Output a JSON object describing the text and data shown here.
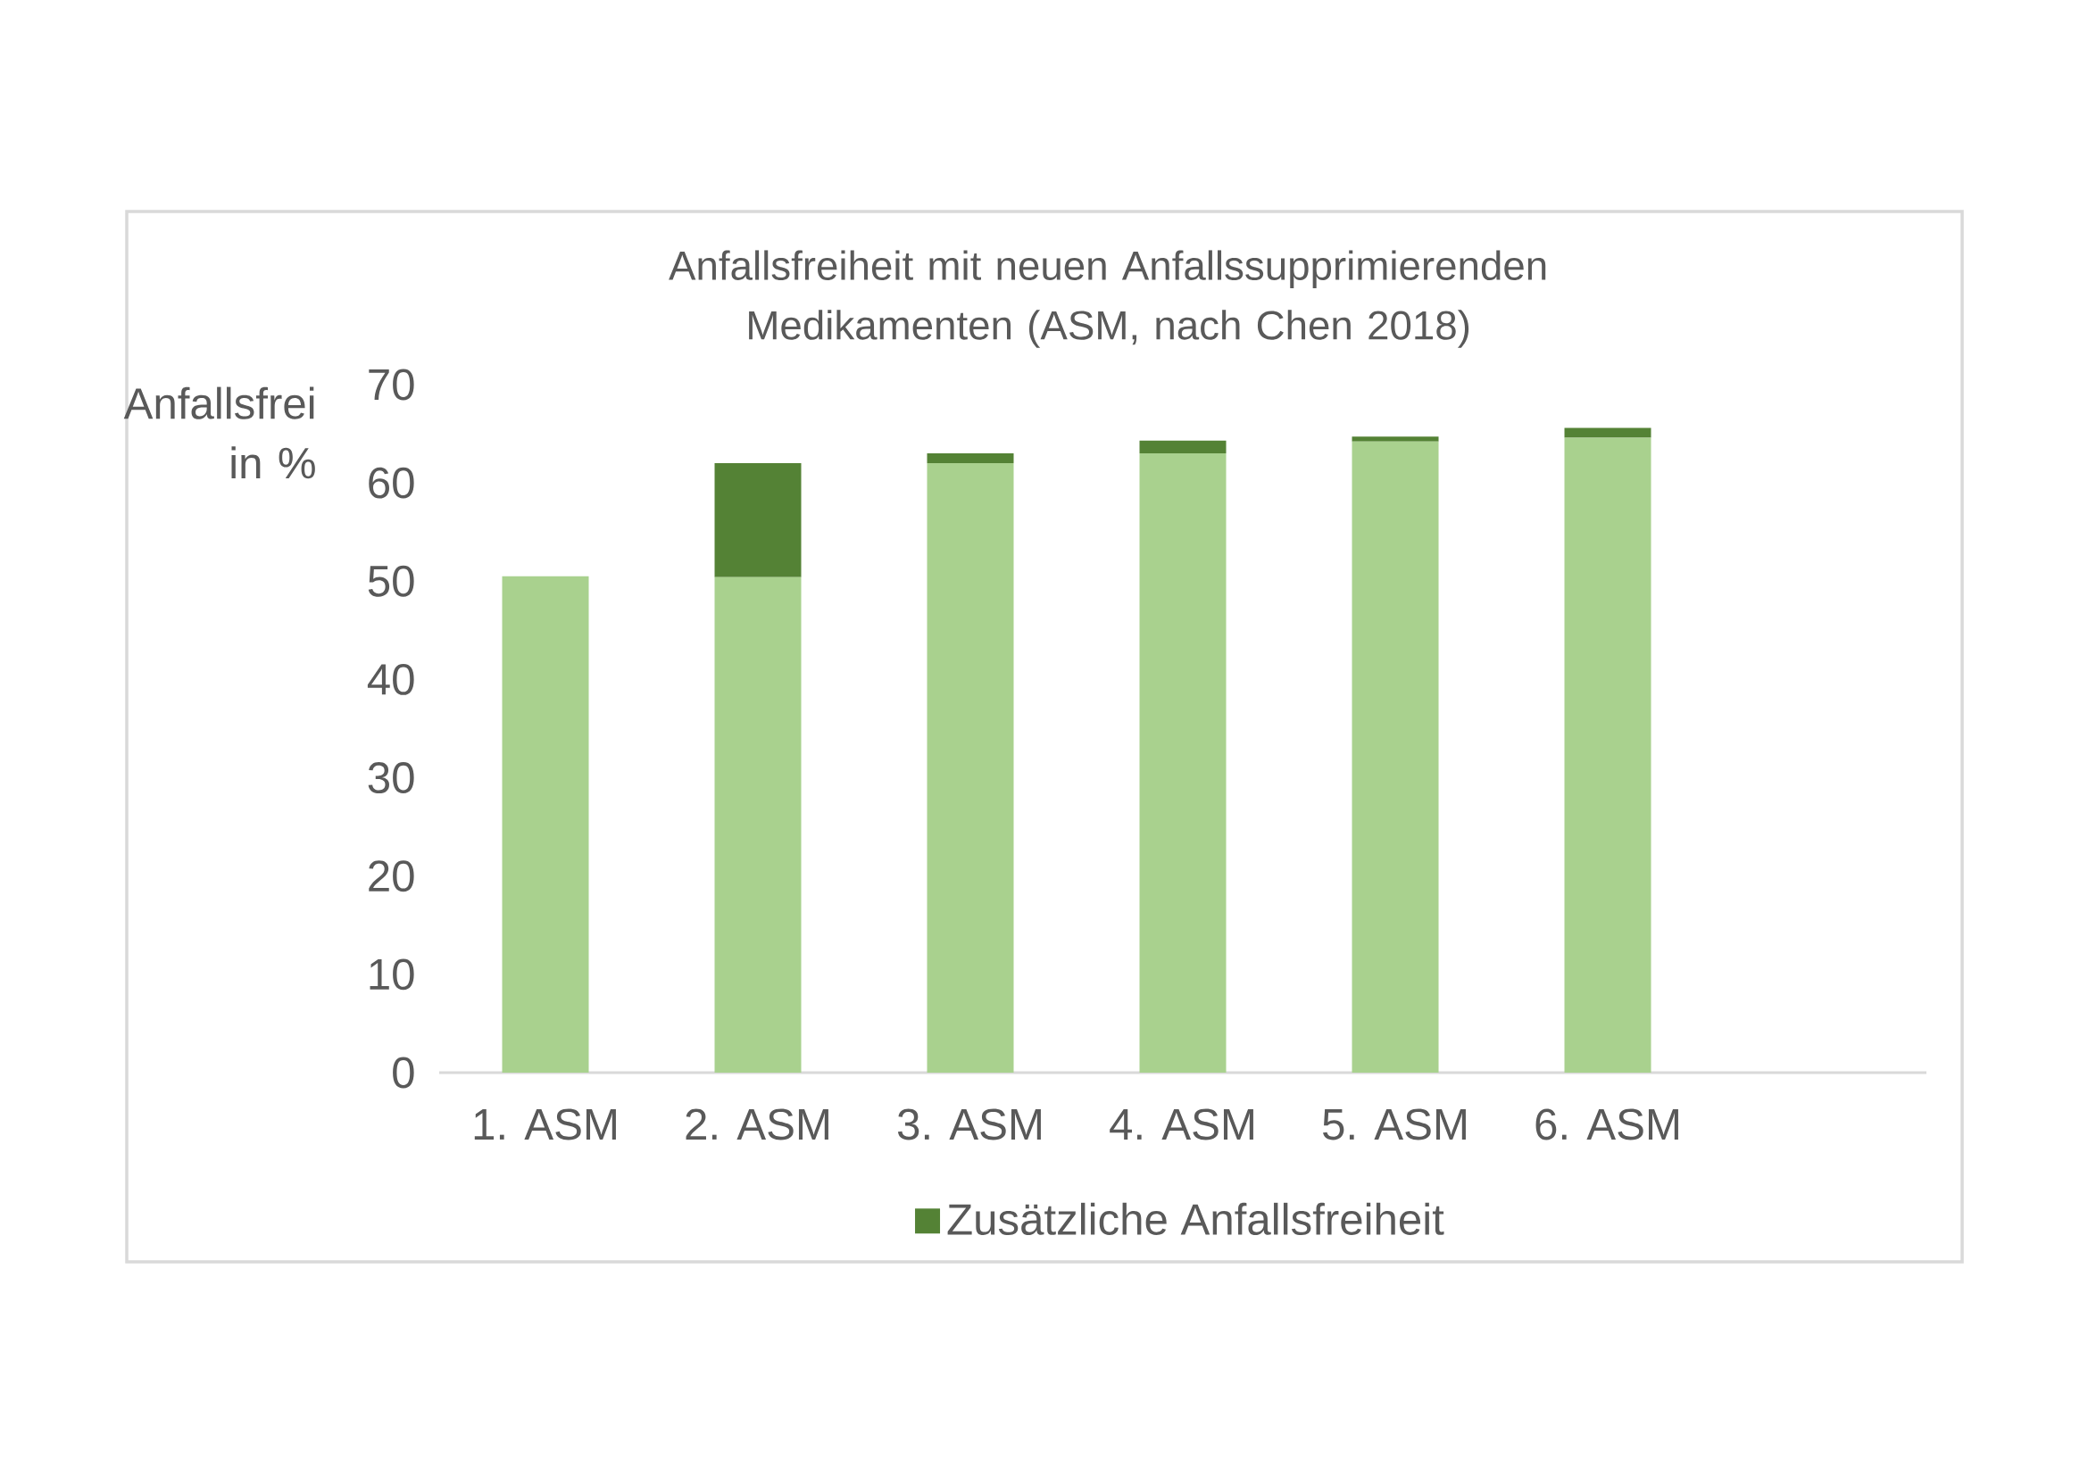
{
  "chart_data": {
    "type": "bar",
    "stacked": true,
    "title": "Anfallsfreiheit mit neuen Anfallssupprimierenden Medikamenten (ASM, nach Chen 2018)",
    "ylabel": "Anfallsfrei in %",
    "categories": [
      "1. ASM",
      "2. ASM",
      "3. ASM",
      "4. ASM",
      "5. ASM",
      "6. ASM"
    ],
    "series": [
      {
        "color": "#a9d18e",
        "values": [
          50.5,
          50.4,
          62.0,
          63.0,
          64.2,
          64.6
        ]
      },
      {
        "name": "Zusätzliche Anfallsfreiheit",
        "color": "#548235",
        "values": [
          null,
          11.6,
          1.0,
          1.3,
          0.5,
          1.0
        ]
      }
    ],
    "ylim": [
      0,
      70
    ],
    "yticks": [
      0,
      10,
      20,
      30,
      40,
      50,
      60,
      70
    ],
    "legend": "bottom"
  }
}
